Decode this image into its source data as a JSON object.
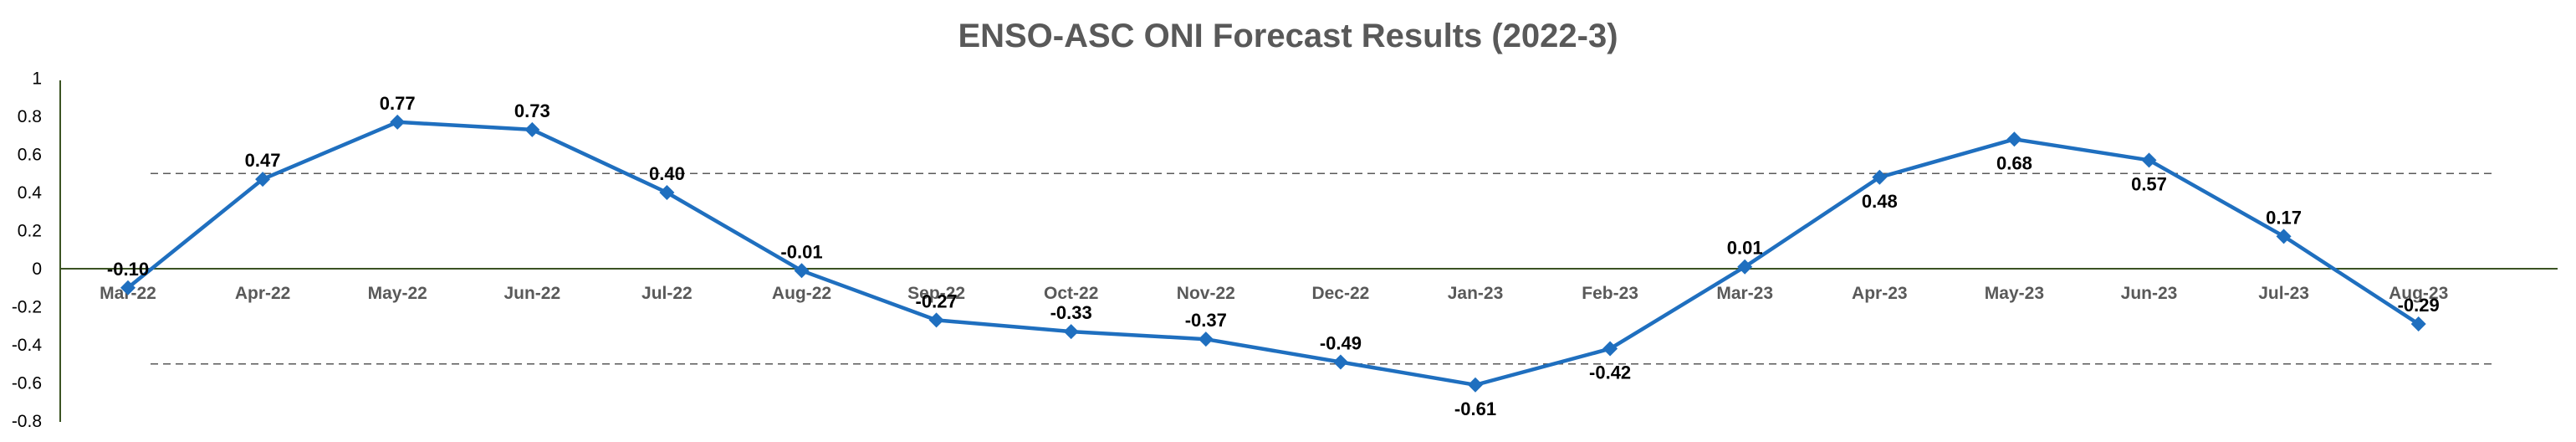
{
  "chart_data": {
    "type": "line",
    "title": "ENSO-ASC ONI Forecast Results (2022-3)",
    "xlabel": "",
    "ylabel": "",
    "categories": [
      "Mar-22",
      "Apr-22",
      "May-22",
      "Jun-22",
      "Jul-22",
      "Aug-22",
      "Sep-22",
      "Oct-22",
      "Nov-22",
      "Dec-22",
      "Jan-23",
      "Feb-23",
      "Mar-23",
      "Apr-23",
      "May-23",
      "Jun-23",
      "Jul-23",
      "Aug-23"
    ],
    "series": [
      {
        "values": [
          -0.1,
          0.47,
          0.77,
          0.73,
          0.4,
          -0.01,
          -0.27,
          -0.33,
          -0.37,
          -0.49,
          -0.61,
          -0.42,
          0.01,
          0.48,
          0.68,
          0.57,
          0.17,
          -0.29
        ],
        "labels": [
          "-0.10",
          "0.47",
          "0.77",
          "0.73",
          "0.40",
          "-0.01",
          "-0.27",
          "-0.33",
          "-0.37",
          "-0.49",
          "-0.61",
          "-0.42",
          "0.01",
          "0.48",
          "0.68",
          "0.57",
          "0.17",
          "-0.29"
        ],
        "color": "#1F6FBF",
        "marker": "diamond"
      }
    ],
    "ylim": [
      -0.8,
      1.0
    ],
    "yticks": [
      "-0.8",
      "-0.6",
      "-0.4",
      "-0.2",
      "0",
      "0.2",
      "0.4",
      "0.6",
      "0.8",
      "1"
    ],
    "reference_lines": [
      0.5,
      -0.5
    ],
    "reference_line_style": "dashed",
    "grid": false,
    "legend": "none",
    "colors": {
      "series": "#1F6FBF",
      "axis": "#3B5323",
      "title": "#595959",
      "reference": "#595959"
    }
  }
}
